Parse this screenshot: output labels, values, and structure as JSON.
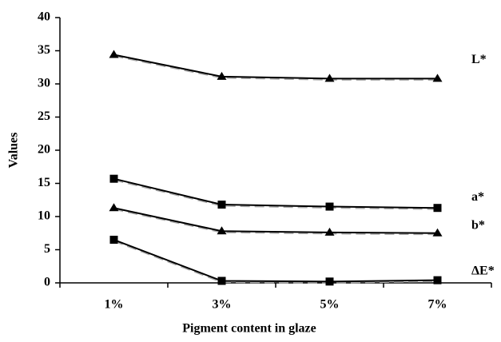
{
  "chart_data": {
    "type": "line",
    "x_label": "Pigment content in glaze",
    "y_label": "Values",
    "categories": [
      "1%",
      "3%",
      "5%",
      "7%"
    ],
    "series": [
      {
        "name": "L*",
        "color": "#000000",
        "marker": "triangle",
        "values": [
          34.4,
          31.1,
          30.8,
          30.8
        ]
      },
      {
        "name": "a*",
        "color": "#000000",
        "marker": "square",
        "values": [
          15.7,
          11.8,
          11.5,
          11.3
        ]
      },
      {
        "name": "b*",
        "color": "#000000",
        "marker": "triangle",
        "values": [
          11.3,
          7.8,
          7.6,
          7.5
        ]
      },
      {
        "name": "ΔE*",
        "color": "#000000",
        "marker": "square",
        "values": [
          6.5,
          0.3,
          0.2,
          0.4
        ]
      }
    ],
    "ylim": [
      0,
      40
    ],
    "yticks": [
      0,
      5,
      10,
      15,
      20,
      25,
      30,
      35,
      40
    ]
  }
}
